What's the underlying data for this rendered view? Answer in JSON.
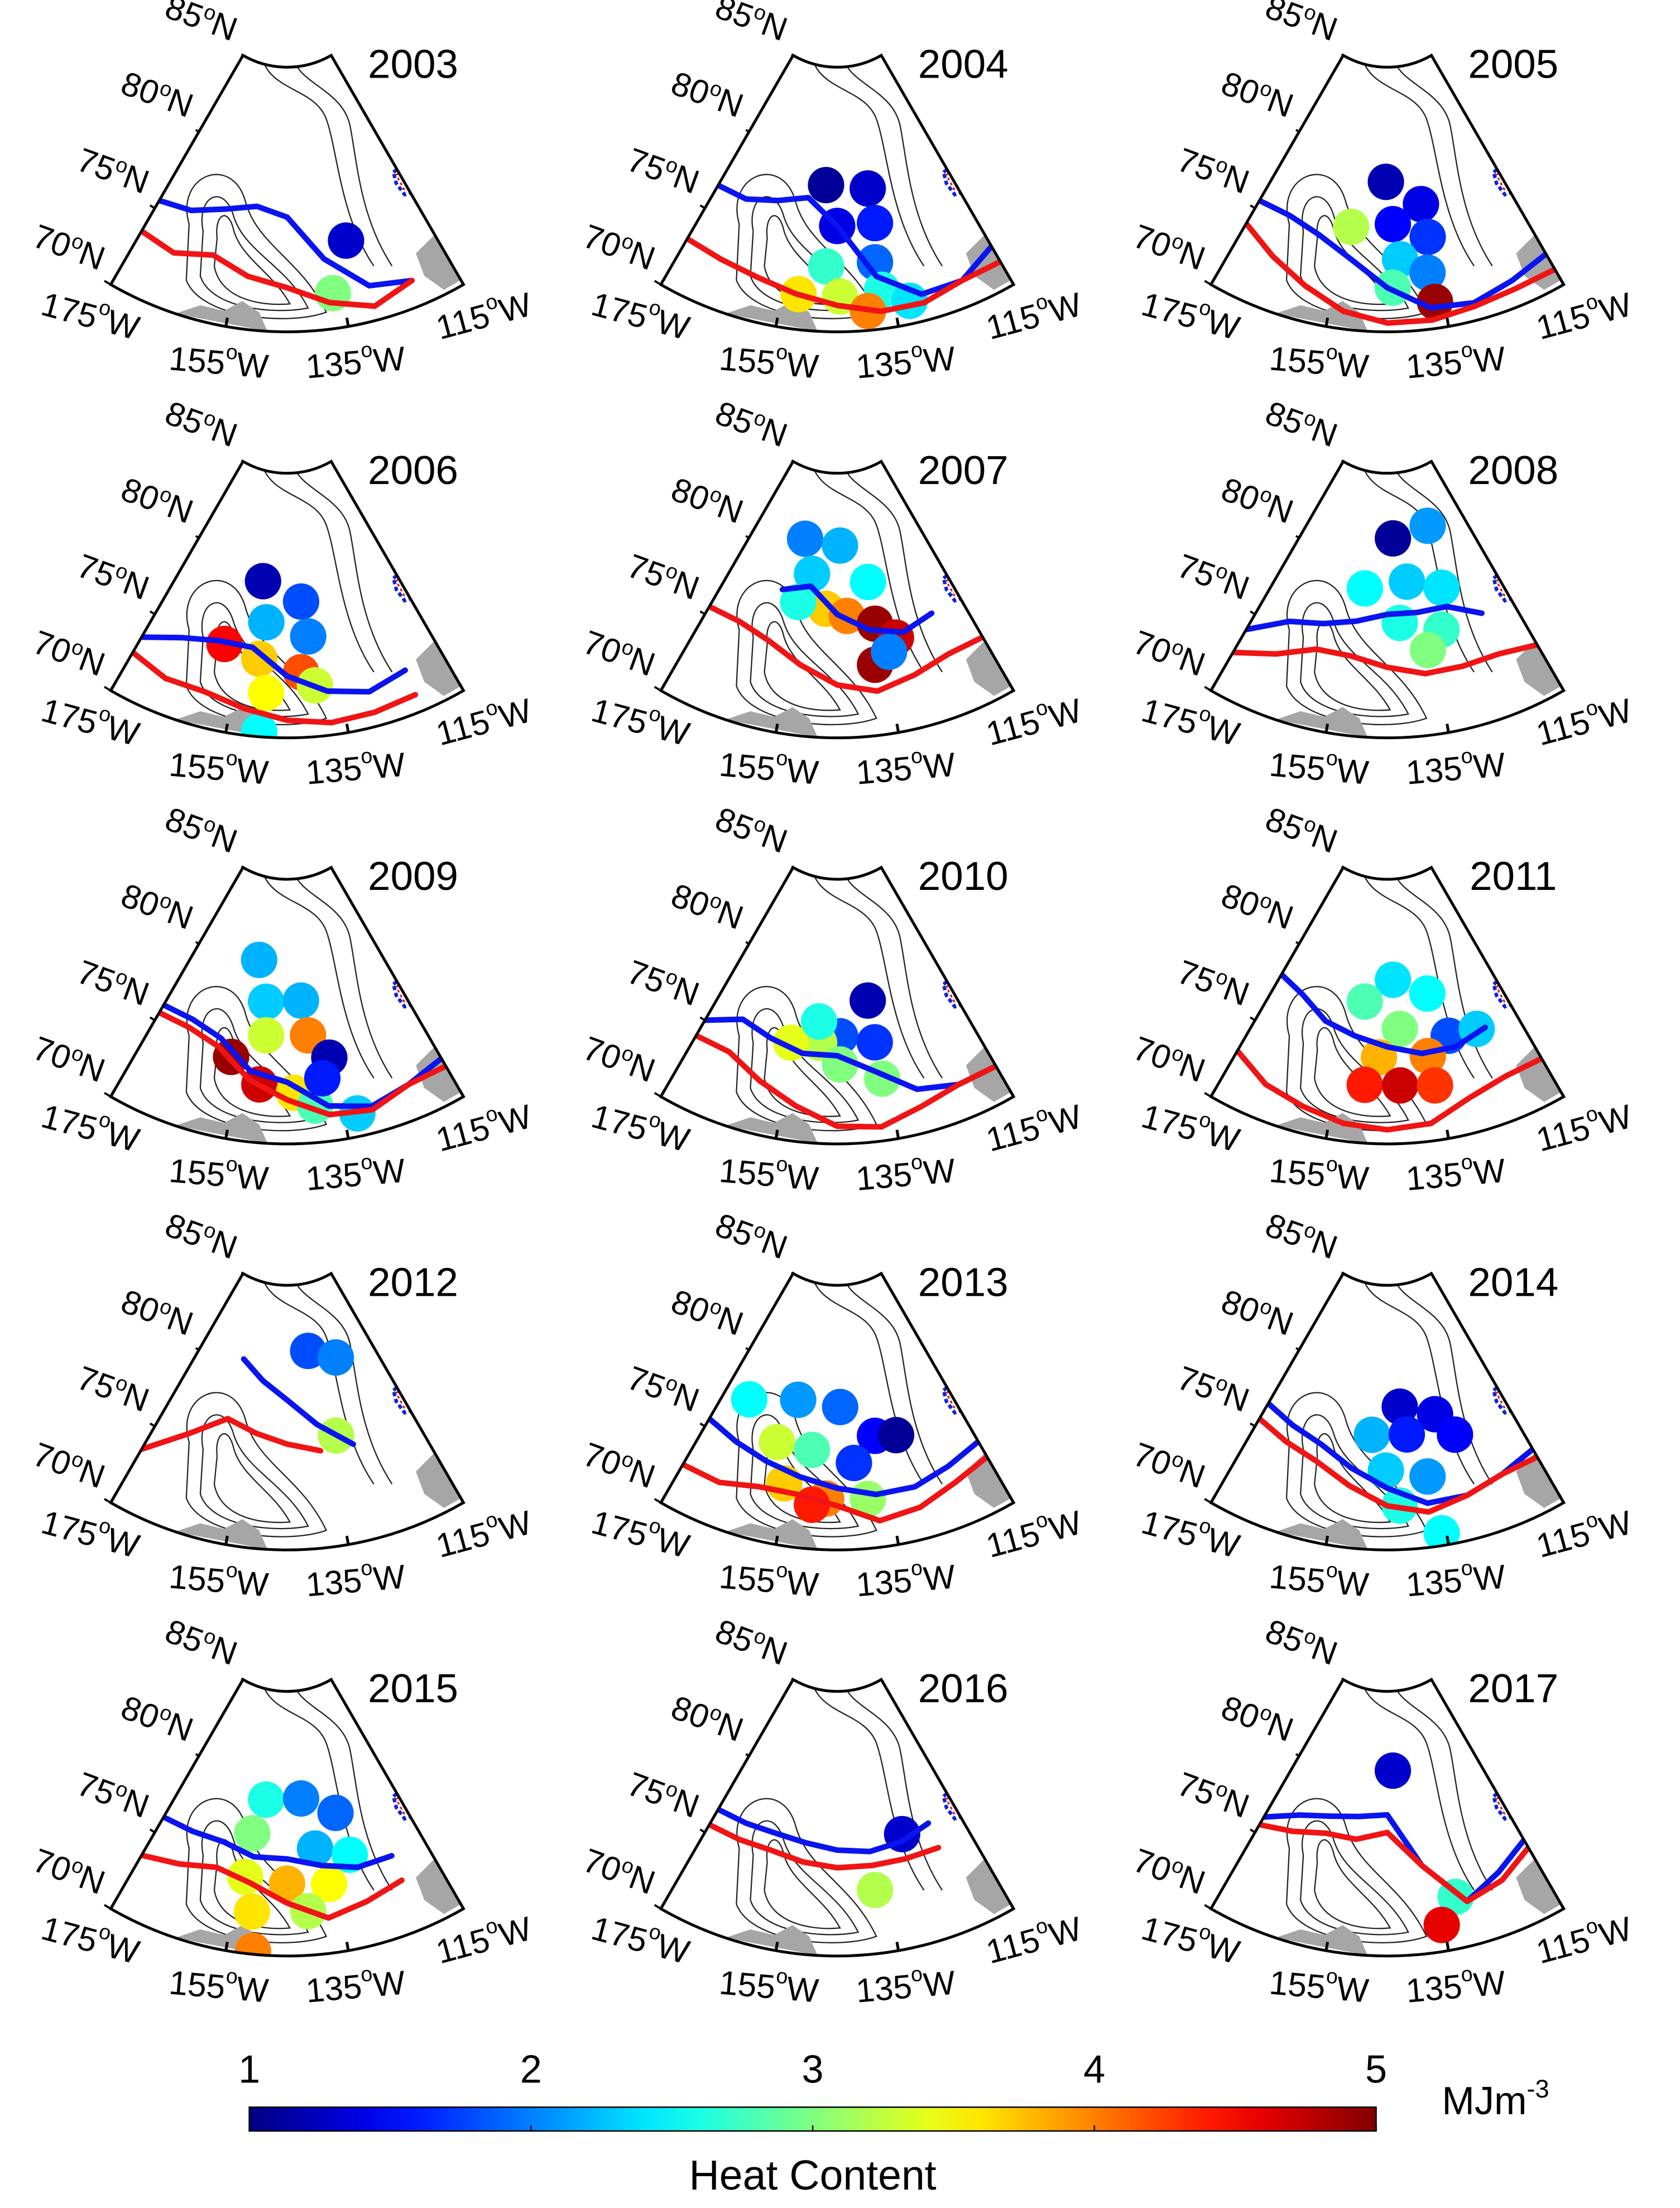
{
  "chart_data": {
    "type": "map",
    "lonlim": [
      -175,
      -115
    ],
    "latlim": [
      70,
      85
    ],
    "degree_symbol": "o",
    "lat_ticks": [
      {
        "value": 85,
        "label": "85",
        "hemisphere": "N"
      },
      {
        "value": 80,
        "label": "80",
        "hemisphere": "N"
      },
      {
        "value": 75,
        "label": "75",
        "hemisphere": "N"
      },
      {
        "value": 70,
        "label": "70",
        "hemisphere": "N"
      }
    ],
    "lon_ticks": [
      {
        "value": -175,
        "label": "175",
        "hemisphere": "W"
      },
      {
        "value": -155,
        "label": "155",
        "hemisphere": "W"
      },
      {
        "value": -135,
        "label": "135",
        "hemisphere": "W"
      },
      {
        "value": -115,
        "label": "115",
        "hemisphere": "W"
      }
    ],
    "line_lons": [
      -175,
      -167.5,
      -160,
      -152.5,
      -145,
      -137.5,
      -130,
      -122.5,
      -115
    ],
    "blue_line_color": "#0a14f0",
    "red_line_color": "#f01414",
    "colorbar": {
      "colormap": "jet",
      "lim": [
        1,
        5
      ],
      "ticks": [
        1,
        2,
        3,
        4,
        5
      ],
      "title": "Heat Content",
      "unit": "MJm",
      "unit_exponent": "-3"
    },
    "panels": [
      {
        "year": "2003",
        "circles": {
          "lon": [
            -132.3,
            -136.7
          ],
          "lat": [
            74.8,
            72.0
          ],
          "values": [
            1.3,
            3.0
          ]
        },
        "blue_line": [
          75.5,
          75.8,
          76.5,
          77,
          76.5,
          74,
          72,
          71.5,
          null
        ],
        "red_line": [
          73.5,
          73.2,
          73.8,
          73.0,
          72.5,
          71.5,
          70.8,
          71.5,
          null
        ]
      },
      {
        "year": "2004",
        "circles": {
          "lon": [
            -148.1,
            -136.7,
            -145,
            -136.2,
            -147.2,
            -137.4,
            -144.5,
            -136.8,
            -139.7,
            -132.3,
            -152
          ],
          "lat": [
            78.3,
            78.0,
            76.0,
            76.0,
            73.7,
            73.8,
            72.0,
            72.2,
            71.1,
            71.3,
            72.0
          ],
          "values": [
            1.1,
            1.3,
            1.4,
            1.6,
            2.7,
            1.9,
            3.3,
            2.6,
            4.0,
            2.4,
            3.6
          ]
        },
        "blue_line": [
          76.5,
          76.5,
          77,
          77.5,
          76,
          73,
          71.5,
          71.5,
          72.5
        ],
        "red_line": [
          73,
          72.8,
          72.5,
          72,
          71.5,
          71,
          71,
          71.5,
          71.5
        ]
      },
      {
        "year": "2005",
        "circles": {
          "lon": [
            -145.4,
            -136.5,
            -143.7,
            -136.1,
            -142.4,
            -137.2,
            -144,
            -136.6,
            -153.3
          ],
          "lat": [
            78.5,
            77.1,
            76.1,
            75.2,
            74.1,
            73.2,
            72.5,
            71.5,
            75.8
          ],
          "values": [
            1.2,
            1.4,
            1.5,
            1.7,
            2.3,
            2.0,
            2.8,
            4.9,
            3.2
          ]
        },
        "blue_line": [
          75.5,
          75.5,
          75,
          74,
          72.5,
          71.2,
          71,
          71.5,
          72
        ],
        "red_line": [
          74,
          73,
          72,
          71,
          70.5,
          70.5,
          70.8,
          71,
          71
        ]
      },
      {
        "year": "2006",
        "circles": {
          "lon": [
            -152,
            -141.3,
            -150,
            -140.2,
            -158.6,
            -150.8,
            -142.2,
            -148.9,
            -139.7,
            -149.6
          ],
          "lat": [
            78.8,
            77.7,
            76.5,
            75.7,
            74.9,
            74.4,
            73.7,
            72.5,
            72.9,
            70.3
          ],
          "values": [
            1.2,
            1.8,
            2.2,
            2.0,
            4.5,
            3.7,
            4.2,
            3.5,
            3.3,
            2.5
          ]
        },
        "blue_line": [
          73.5,
          74.5,
          75,
          75,
          73.5,
          72.5,
          72,
          72.5,
          null
        ],
        "red_line": [
          72.5,
          72,
          72,
          71.5,
          71,
          70.7,
          70.8,
          71,
          null
        ]
      },
      {
        "year": "2007",
        "circles": {
          "lon": [
            -156.8,
            -144,
            -152.6,
            -136.1,
            -147.9,
            -142.6,
            -136,
            -131.9,
            -137.3,
            -134,
            -155.2
          ],
          "lat": [
            81.1,
            80.9,
            79.2,
            78.7,
            77.3,
            76.9,
            76.3,
            75.3,
            74.0,
            74.6,
            77.5
          ],
          "values": [
            2.0,
            2.2,
            2.3,
            2.5,
            3.7,
            4.0,
            4.9,
            4.7,
            4.9,
            2.0,
            2.6
          ]
        },
        "blue_line": [
          null,
          null,
          78,
          78.5,
          77,
          76,
          75.5,
          76,
          null
        ],
        "red_line": [
          75.5,
          75.5,
          75,
          74,
          73,
          72.5,
          73,
          73.5,
          73.5
        ]
      },
      {
        "year": "2008",
        "circles": {
          "lon": [
            -129,
            -142.9,
            -139.3,
            -151.3,
            -130,
            -142,
            -132.5,
            -136.3
          ],
          "lat": [
            81.7,
            81.3,
            78.8,
            78.4,
            78.1,
            76.5,
            75.8,
            74.8
          ],
          "values": [
            2.1,
            1.1,
            2.3,
            2.5,
            2.4,
            2.6,
            2.7,
            3.0
          ]
        },
        "blue_line": [
          74,
          75.5,
          76,
          76.5,
          77,
          77,
          77,
          76,
          null
        ],
        "red_line": [
          72.5,
          73.5,
          74.5,
          74.5,
          74,
          73.5,
          73.5,
          73.5,
          73
        ]
      },
      {
        "year": "2009",
        "circles": {
          "lon": [
            -154.4,
            -150.7,
            -141.2,
            -149.9,
            -140.1,
            -156.9,
            -150.4,
            -143.7,
            -136,
            -139.9,
            -132.7,
            -138
          ],
          "lat": [
            80.3,
            78.0,
            78.1,
            76.1,
            76.1,
            74.6,
            73.3,
            72.9,
            74.7,
            72.1,
            71.3,
            73.6
          ],
          "values": [
            2.2,
            2.3,
            2.2,
            3.3,
            4.0,
            4.9,
            4.7,
            3.6,
            1.2,
            2.8,
            2.3,
            1.6
          ]
        },
        "blue_line": [
          76,
          76,
          75.5,
          74,
          73.5,
          72,
          71.5,
          72,
          72.5
        ],
        "red_line": [
          75.5,
          75.5,
          75,
          73.5,
          72.5,
          71.5,
          71.3,
          72,
          72
        ]
      },
      {
        "year": "2010",
        "circles": {
          "lon": [
            -136.7,
            -144.3,
            -136.5,
            -149.1,
            -155.4,
            -144.4,
            -136.1,
            -149.5
          ],
          "lat": [
            78.0,
            76.1,
            75.6,
            75.7,
            75.5,
            74.5,
            73.5,
            76.9
          ],
          "values": [
            1.2,
            1.8,
            1.7,
            3.2,
            3.4,
            3.0,
            3.0,
            2.6
          ]
        },
        "blue_line": [
          75,
          76,
          75.5,
          75,
          75,
          74,
          72.5,
          72,
          72
        ],
        "red_line": [
          74,
          74,
          73,
          72,
          71,
          70.8,
          71.5,
          72,
          72
        ]
      },
      {
        "year": "2011",
        "circles": {
          "lon": [
            -143.3,
            -133.8,
            -151.1,
            -142,
            -130.9,
            -146.8,
            -136.3,
            -149.4,
            -142.5,
            -135.8,
            -124.4
          ],
          "lat": [
            79.3,
            78.3,
            78.0,
            76.5,
            75.7,
            74.9,
            74.8,
            73.3,
            73.3,
            73.1,
            75.6
          ],
          "values": [
            2.4,
            2.5,
            2.8,
            3.0,
            1.8,
            3.8,
            4.0,
            4.4,
            4.7,
            4.3,
            2.3
          ]
        },
        "blue_line": [
          78,
          77.5,
          76.5,
          76,
          75.5,
          75,
          75,
          75.5,
          null
        ],
        "red_line": [
          73,
          72,
          71.5,
          71,
          70.8,
          71,
          72,
          72.5,
          72.5
        ]
      },
      {
        "year": "2012",
        "circles": {
          "lon": [
            -137.2,
            -128.1,
            -133.4
          ],
          "lat": [
            81.2,
            80.5,
            76.2
          ],
          "values": [
            1.8,
            2.0,
            3.2
          ]
        },
        "blue_line": [
          null,
          null,
          80.5,
          79.5,
          78.5,
          77,
          75.5,
          null,
          null
        ],
        "red_line": [
          73.5,
          75.5,
          77,
          76.5,
          76,
          75.5,
          null,
          null,
          null
        ]
      },
      {
        "year": "2013",
        "circles": {
          "lon": [
            -168.5,
            -155.9,
            -144.2,
            -136,
            -131.1,
            -158.8,
            -150.7,
            -141.4,
            -155.5,
            -147.1,
            -149.7,
            -139.2
          ],
          "lat": [
            77.5,
            78.3,
            78.1,
            76.3,
            76.1,
            75.7,
            75.6,
            74.9,
            73.5,
            72.9,
            72.5,
            72.8
          ],
          "values": [
            2.5,
            2.1,
            1.9,
            1.5,
            1.1,
            3.3,
            2.8,
            1.7,
            3.7,
            4.0,
            4.4,
            3.1
          ]
        },
        "blue_line": [
          75.5,
          75,
          74.5,
          74,
          73.5,
          73,
          73,
          73.5,
          74
        ],
        "red_line": [
          72.5,
          72.5,
          73,
          73,
          72.5,
          71.5,
          71.8,
          72.5,
          73
        ]
      },
      {
        "year": "2014",
        "circles": {
          "lon": [
            -141.6,
            -132.6,
            -148.7,
            -140.3,
            -129.1,
            -145.3,
            -136.8,
            -142.7,
            -135.8
          ],
          "lat": [
            78.1,
            77.4,
            76.5,
            76.5,
            76.0,
            74.5,
            74.0,
            72.5,
            70.7
          ],
          "values": [
            1.3,
            1.4,
            2.2,
            1.6,
            1.5,
            2.3,
            2.1,
            2.6,
            2.5
          ]
        },
        "blue_line": [
          76.5,
          76,
          75.5,
          74.5,
          73.5,
          72.5,
          72.5,
          73,
          73.5
        ],
        "red_line": [
          75.5,
          75,
          74.5,
          73.5,
          72.5,
          72,
          72.5,
          73,
          73
        ]
      },
      {
        "year": "2015",
        "circles": {
          "lon": [
            -151.1,
            -140.9,
            -132,
            -153.6,
            -138.5,
            -131,
            -153.7,
            -145,
            -136.5,
            -151.5,
            -141.1,
            -150.6
          ],
          "lat": [
            78.8,
            78.9,
            77.8,
            76.8,
            76.0,
            75.3,
            74.3,
            74.1,
            73.9,
            72.4,
            72.5,
            70.2
          ],
          "values": [
            2.6,
            2.0,
            1.9,
            3.0,
            2.2,
            2.5,
            3.4,
            3.8,
            3.5,
            3.6,
            3.2,
            4.0
          ]
        },
        "blue_line": [
          76,
          76,
          76,
          75.5,
          75.5,
          75,
          74.5,
          74.5,
          null
        ],
        "red_line": [
          73.5,
          74,
          74.5,
          74,
          73,
          72,
          72.5,
          73,
          null
        ]
      },
      {
        "year": "2016",
        "circles": {
          "lon": [
            -129.3,
            -137.5
          ],
          "lat": [
            76.4,
            73.6
          ],
          "values": [
            1.3,
            3.2
          ]
        },
        "blue_line": [
          76.5,
          76.5,
          76.5,
          76.3,
          76,
          75.8,
          76,
          76.5,
          null
        ],
        "red_line": [
          75.5,
          75.5,
          75.5,
          75.2,
          75,
          75,
          75,
          75,
          null
        ]
      },
      {
        "year": "2017",
        "circles": {
          "lon": [
            -143.1,
            -131.9,
            -135.4
          ],
          "lat": [
            80.5,
            72.9,
            71.5
          ],
          "values": [
            1.3,
            2.7,
            4.6
          ]
        },
        "blue_line": [
          76,
          77,
          77.5,
          77.8,
          78,
          75,
          72.5,
          73.5,
          74.5
        ],
        "red_line": [
          75.5,
          76,
          76.5,
          76.5,
          77,
          75,
          72.5,
          73,
          74
        ]
      }
    ]
  }
}
